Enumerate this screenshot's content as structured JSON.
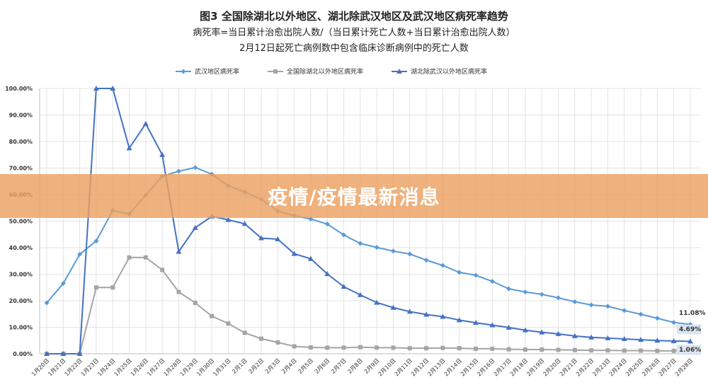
{
  "chart_data": {
    "type": "line",
    "title": "图3 全国除湖北以外地区、湖北除武汉地区及武汉地区病死率趋势",
    "subtitle": "病死率=当日累计治愈出院人数/（当日累计死亡人数+当日累计治愈出院人数）",
    "note": "2月12日起死亡病例数中包含临床诊断病例中的死亡人数",
    "legend_position": "top",
    "ylim": [
      0,
      100
    ],
    "yticks": [
      "0.00%",
      "10.00%",
      "20.00%",
      "30.00%",
      "40.00%",
      "50.00%",
      "60.00%",
      "70.00%",
      "80.00%",
      "90.00%",
      "100.00%"
    ],
    "categories": [
      "1月20日",
      "1月21日",
      "1月22日",
      "1月23日",
      "1月24日",
      "1月25日",
      "1月26日",
      "1月27日",
      "1月28日",
      "1月29日",
      "1月30日",
      "1月31日",
      "2月1日",
      "2月2日",
      "2月3日",
      "2月4日",
      "2月5日",
      "2月6日",
      "2月7日",
      "2月8日",
      "2月9日",
      "2月10日",
      "2月11日",
      "2月12日",
      "2月13日",
      "2月14日",
      "2月15日",
      "2月16日",
      "2月17日",
      "2月18日",
      "2月19日",
      "2月20日",
      "2月21日",
      "2月22日",
      "2月23日",
      "2月24日",
      "2月25日",
      "2月26日",
      "2月27日",
      "2月28日"
    ],
    "series": [
      {
        "name": "武汉地区病死率",
        "color": "#5b9bd5",
        "marker": "diamond",
        "values": [
          19.2,
          26.5,
          37.5,
          42.5,
          54.0,
          52.7,
          59.8,
          66.9,
          68.8,
          70.2,
          67.7,
          63.3,
          61.0,
          58.2,
          53.8,
          52.0,
          50.8,
          48.9,
          44.8,
          41.6,
          40.1,
          38.7,
          37.6,
          35.3,
          33.3,
          30.7,
          29.6,
          27.3,
          24.5,
          23.3,
          22.4,
          21.1,
          19.6,
          18.4,
          17.9,
          16.3,
          14.9,
          13.4,
          11.8,
          11.08
        ]
      },
      {
        "name": "全国除湖北以外地区病死率",
        "color": "#a5a5a5",
        "marker": "square",
        "values": [
          0,
          0,
          0,
          25.0,
          25.0,
          36.3,
          36.3,
          31.6,
          23.3,
          19.2,
          14.2,
          11.4,
          7.9,
          5.7,
          4.3,
          2.8,
          2.4,
          2.3,
          2.3,
          2.5,
          2.3,
          2.3,
          2.1,
          2.1,
          2.2,
          2.1,
          1.9,
          1.9,
          1.7,
          1.6,
          1.6,
          1.5,
          1.4,
          1.3,
          1.3,
          1.2,
          1.2,
          1.1,
          1.1,
          1.06
        ]
      },
      {
        "name": "湖北除武汉以外地区病死率",
        "color": "#4472c4",
        "marker": "triangle",
        "values": [
          0,
          0,
          0,
          100.0,
          100.0,
          77.5,
          86.7,
          75.0,
          38.5,
          47.5,
          51.8,
          50.5,
          49.0,
          43.6,
          43.2,
          37.7,
          35.8,
          30.1,
          25.3,
          22.2,
          19.3,
          17.4,
          15.9,
          14.8,
          14.0,
          12.7,
          11.7,
          10.8,
          9.9,
          8.9,
          8.1,
          7.5,
          6.7,
          6.2,
          5.9,
          5.6,
          5.3,
          5.0,
          4.8,
          4.69
        ]
      }
    ],
    "end_labels": [
      "11.08%",
      "4.69%",
      "1.06%"
    ]
  },
  "banner": {
    "text": "疫情/疫情最新消息"
  }
}
